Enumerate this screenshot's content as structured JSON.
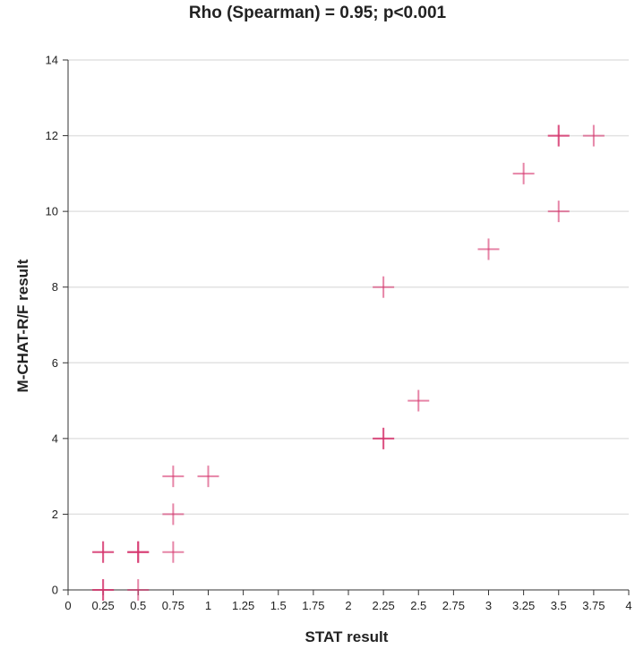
{
  "chart_data": {
    "type": "scatter",
    "title": "Rho (Spearman) = 0.95; p<0.001",
    "xlabel": "STAT result",
    "ylabel": "M-CHAT-R/F result",
    "xlim": [
      0,
      4
    ],
    "ylim": [
      0,
      14
    ],
    "x_ticks": [
      "0",
      "0.25",
      "0.5",
      "0.75",
      "1",
      "1.25",
      "1.5",
      "1.75",
      "2",
      "2.25",
      "2.5",
      "2.75",
      "3",
      "3.25",
      "3.5",
      "3.75",
      "4"
    ],
    "y_ticks": [
      "0",
      "2",
      "4",
      "6",
      "8",
      "10",
      "12",
      "14"
    ],
    "grid": "horizontal",
    "marker": "plus",
    "marker_color": "#d6336c",
    "points": [
      {
        "x": 0.25,
        "y": 0
      },
      {
        "x": 0.25,
        "y": 0
      },
      {
        "x": 0.25,
        "y": 1
      },
      {
        "x": 0.25,
        "y": 1
      },
      {
        "x": 0.5,
        "y": 0
      },
      {
        "x": 0.5,
        "y": 1
      },
      {
        "x": 0.5,
        "y": 1
      },
      {
        "x": 0.5,
        "y": 1
      },
      {
        "x": 0.75,
        "y": 1
      },
      {
        "x": 0.75,
        "y": 2
      },
      {
        "x": 0.75,
        "y": 3
      },
      {
        "x": 1,
        "y": 3
      },
      {
        "x": 2.25,
        "y": 4
      },
      {
        "x": 2.25,
        "y": 4
      },
      {
        "x": 2.5,
        "y": 5
      },
      {
        "x": 2.25,
        "y": 8
      },
      {
        "x": 3,
        "y": 9
      },
      {
        "x": 3.5,
        "y": 10
      },
      {
        "x": 3.25,
        "y": 11
      },
      {
        "x": 3.5,
        "y": 12
      },
      {
        "x": 3.5,
        "y": 12
      },
      {
        "x": 3.75,
        "y": 12
      }
    ]
  }
}
